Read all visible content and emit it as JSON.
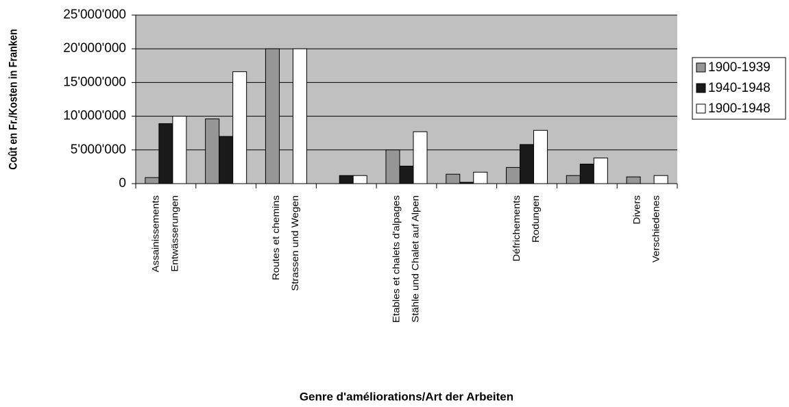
{
  "chart_data": {
    "type": "bar",
    "x_label": "Genre d'améliorations/Art der Arbeiten",
    "y_label": "Coût en Fr./Kosten in Franken",
    "categories": [
      [
        "Assainissements",
        "Entwässerungen"
      ],
      null,
      [
        "Routes et chemins",
        "Strassen und Wegen"
      ],
      null,
      [
        "Etables et chalets d'alpages",
        "Stähle und Chalet auf Alpen"
      ],
      null,
      [
        "Défrichements",
        "Rodungen"
      ],
      null,
      [
        "Divers",
        "Verschiedenes"
      ]
    ],
    "series": [
      {
        "name": "1900-1939",
        "color": "#969696",
        "values": [
          900000,
          9600000,
          20000000,
          0,
          5000000,
          1400000,
          2400000,
          1200000,
          1000000
        ]
      },
      {
        "name": "1940-1948",
        "color": "#1a1a1a",
        "values": [
          8900000,
          7000000,
          0,
          1200000,
          2600000,
          200000,
          5800000,
          2900000,
          0
        ]
      },
      {
        "name": "1900-1948",
        "color": "#ffffff",
        "values": [
          10000000,
          16600000,
          20000000,
          1200000,
          7700000,
          1700000,
          7900000,
          3800000,
          1200000
        ]
      }
    ],
    "ylim": [
      0,
      25000000
    ],
    "yticks": [
      0,
      {
        "value": 5000000,
        "label": "5'000'000"
      },
      {
        "value": 10000000,
        "label": "10'000'000"
      },
      {
        "value": 15000000,
        "label": "15'000'000"
      },
      {
        "value": 20000000,
        "label": "20'000'000"
      },
      {
        "value": 25000000,
        "label": "25'000'000"
      }
    ],
    "grid": true,
    "legend": "right"
  }
}
